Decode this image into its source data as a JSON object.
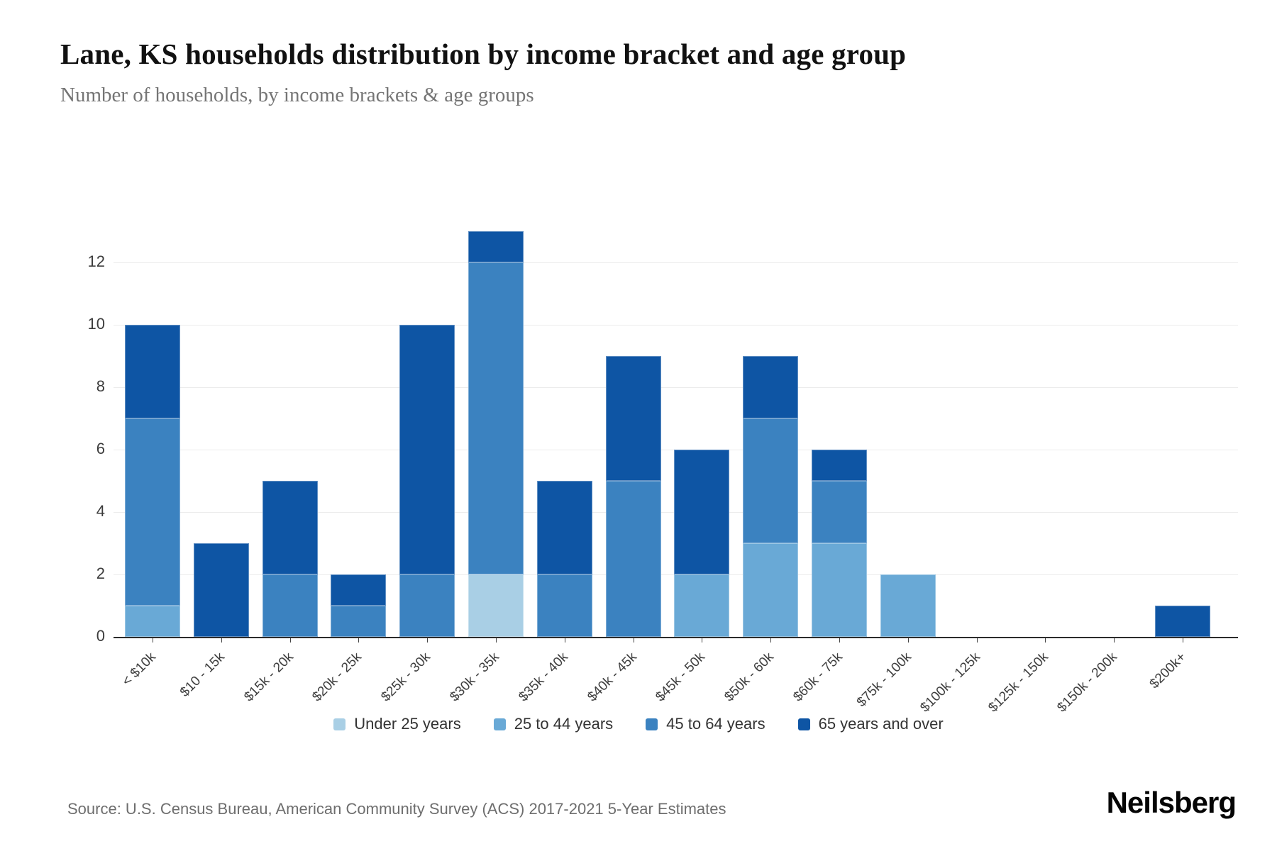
{
  "title": "Lane, KS households distribution by income bracket and age group",
  "subtitle": "Number of households, by income brackets & age groups",
  "source": "Source: U.S. Census Bureau, American Community Survey (ACS) 2017-2021 5-Year Estimates",
  "brand": "Neilsberg",
  "chart_data": {
    "type": "bar",
    "stacked": true,
    "grid": true,
    "legend_position": "bottom",
    "categories": [
      "< $10k",
      "$10 - 15k",
      "$15k - 20k",
      "$20k - 25k",
      "$25k - 30k",
      "$30k - 35k",
      "$35k - 40k",
      "$40k - 45k",
      "$45k - 50k",
      "$50k - 60k",
      "$60k - 75k",
      "$75k - 100k",
      "$100k - 125k",
      "$125k - 150k",
      "$150k - 200k",
      "$200k+"
    ],
    "series": [
      {
        "name": "Under 25 years",
        "color": "#a9cfe5",
        "values": [
          0,
          0,
          0,
          0,
          0,
          2,
          0,
          0,
          0,
          0,
          0,
          0,
          0,
          0,
          0,
          0
        ]
      },
      {
        "name": "25 to 44 years",
        "color": "#69a9d6",
        "values": [
          1,
          0,
          0,
          0,
          0,
          0,
          0,
          0,
          2,
          3,
          3,
          2,
          0,
          0,
          0,
          0
        ]
      },
      {
        "name": "45 to 64 years",
        "color": "#3b82c0",
        "values": [
          6,
          0,
          2,
          1,
          2,
          10,
          2,
          5,
          0,
          4,
          2,
          0,
          0,
          0,
          0,
          0
        ]
      },
      {
        "name": "65 years and over",
        "color": "#0e55a4",
        "values": [
          3,
          3,
          3,
          1,
          8,
          1,
          3,
          4,
          4,
          2,
          1,
          0,
          0,
          0,
          0,
          1
        ]
      }
    ],
    "totals": [
      10,
      3,
      5,
      2,
      10,
      13,
      5,
      9,
      6,
      9,
      6,
      2,
      0,
      0,
      0,
      1
    ],
    "xlabel": "",
    "ylabel": "",
    "yticks": [
      0,
      2,
      4,
      6,
      8,
      10,
      12
    ],
    "ylim": [
      0,
      13
    ]
  }
}
